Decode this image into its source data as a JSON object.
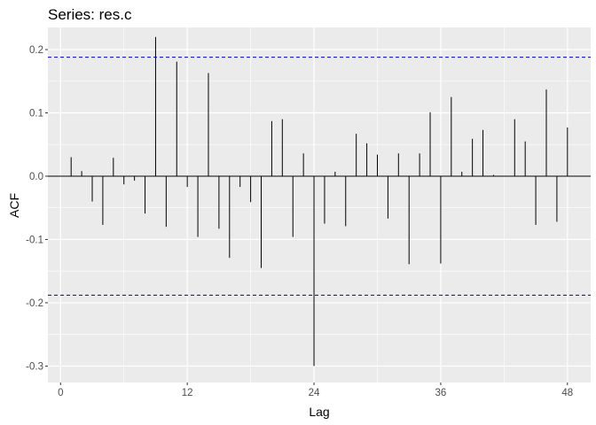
{
  "chart_data": {
    "type": "bar",
    "title": "Series: res.c",
    "xlabel": "Lag",
    "ylabel": "ACF",
    "xlim": [
      -1.2,
      50.2
    ],
    "ylim": [
      -0.326,
      0.235
    ],
    "x_ticks": [
      0,
      12,
      24,
      36,
      48
    ],
    "x_tick_labels": [
      "0",
      "12",
      "24",
      "36",
      "48"
    ],
    "y_ticks": [
      -0.3,
      -0.2,
      -0.1,
      0.0,
      0.1,
      0.2
    ],
    "y_tick_labels": [
      "-0.3",
      "-0.2",
      "-0.1",
      "0.0",
      "0.1",
      "0.2"
    ],
    "confidence_bound": 0.188,
    "grid": true,
    "background": "#ebebeb",
    "grid_color": "#ffffff",
    "bar_color": "#000000",
    "bound_color": "#0000cc",
    "lags": [
      1,
      2,
      3,
      4,
      5,
      6,
      7,
      8,
      9,
      10,
      11,
      12,
      13,
      14,
      15,
      16,
      17,
      18,
      19,
      20,
      21,
      22,
      23,
      24,
      25,
      26,
      27,
      28,
      29,
      30,
      31,
      32,
      33,
      34,
      35,
      36,
      37,
      38,
      39,
      40,
      41,
      42,
      43,
      44,
      45,
      46,
      47,
      48
    ],
    "values": [
      0.03,
      0.008,
      -0.04,
      -0.077,
      0.029,
      -0.013,
      -0.007,
      -0.059,
      0.22,
      -0.08,
      0.181,
      -0.017,
      -0.096,
      0.163,
      -0.083,
      -0.129,
      -0.017,
      -0.041,
      -0.145,
      0.087,
      0.09,
      -0.096,
      0.036,
      -0.3,
      -0.075,
      0.007,
      -0.079,
      0.067,
      0.052,
      0.034,
      -0.067,
      0.036,
      -0.139,
      0.036,
      0.101,
      -0.138,
      0.125,
      0.007,
      0.059,
      0.073,
      0.002,
      0.0,
      0.09,
      0.055,
      -0.077,
      0.137,
      -0.072,
      0.077
    ]
  }
}
